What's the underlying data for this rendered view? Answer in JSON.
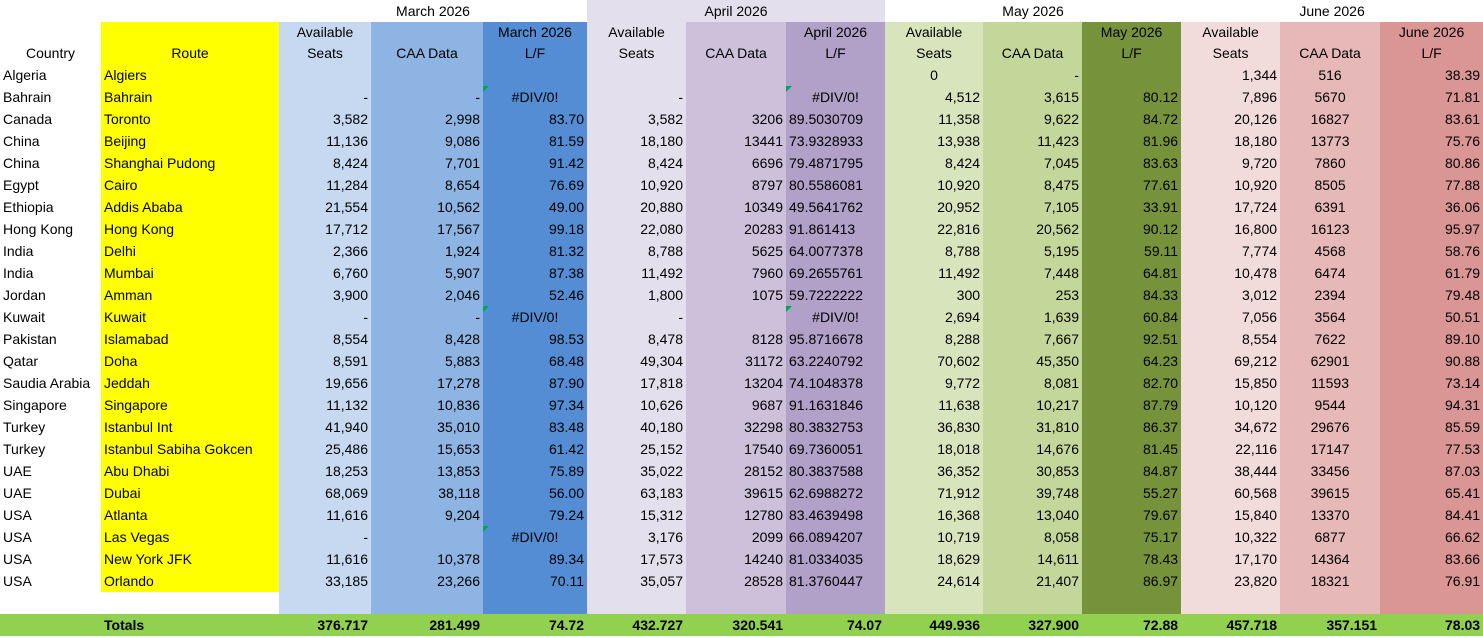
{
  "months": [
    "March 2026",
    "April 2026",
    "May 2026",
    "June 2026"
  ],
  "headers": {
    "country": "Country",
    "route": "Route",
    "seats_l1": "Available",
    "seats_l2": "Seats",
    "caa": "CAA Data",
    "lf_l1": [
      "March 2026",
      "April  2026",
      "May 2026",
      "June 2026"
    ],
    "lf_l2": "L/F"
  },
  "rows": [
    {
      "country": "Algeria",
      "route": "Algiers",
      "mar": [
        "",
        "",
        ""
      ],
      "apr": [
        "",
        "",
        ""
      ],
      "may": [
        "0",
        "-",
        ""
      ],
      "jun": [
        "1,344",
        "516",
        "38.39"
      ]
    },
    {
      "country": "Bahrain",
      "route": "Bahrain",
      "mar": [
        "-",
        "-",
        "#DIV/0!"
      ],
      "apr": [
        "-",
        "",
        "#DIV/0!"
      ],
      "may": [
        "4,512",
        "3,615",
        "80.12"
      ],
      "jun": [
        "7,896",
        "5670",
        "71.81"
      ]
    },
    {
      "country": "Canada",
      "route": "Toronto",
      "mar": [
        "3,582",
        "2,998",
        "83.70"
      ],
      "apr": [
        "3,582",
        "3206",
        "89.5030709"
      ],
      "may": [
        "11,358",
        "9,622",
        "84.72"
      ],
      "jun": [
        "20,126",
        "16827",
        "83.61"
      ]
    },
    {
      "country": "China",
      "route": "Beijing",
      "mar": [
        "11,136",
        "9,086",
        "81.59"
      ],
      "apr": [
        "18,180",
        "13441",
        "73.9328933"
      ],
      "may": [
        "13,938",
        "11,423",
        "81.96"
      ],
      "jun": [
        "18,180",
        "13773",
        "75.76"
      ]
    },
    {
      "country": "China",
      "route": "Shanghai Pudong",
      "mar": [
        "8,424",
        "7,701",
        "91.42"
      ],
      "apr": [
        "8,424",
        "6696",
        "79.4871795"
      ],
      "may": [
        "8,424",
        "7,045",
        "83.63"
      ],
      "jun": [
        "9,720",
        "7860",
        "80.86"
      ]
    },
    {
      "country": "Egypt",
      "route": "Cairo",
      "mar": [
        "11,284",
        "8,654",
        "76.69"
      ],
      "apr": [
        "10,920",
        "8797",
        "80.5586081"
      ],
      "may": [
        "10,920",
        "8,475",
        "77.61"
      ],
      "jun": [
        "10,920",
        "8505",
        "77.88"
      ]
    },
    {
      "country": "Ethiopia",
      "route": "Addis Ababa",
      "mar": [
        "21,554",
        "10,562",
        "49.00"
      ],
      "apr": [
        "20,880",
        "10349",
        "49.5641762"
      ],
      "may": [
        "20,952",
        "7,105",
        "33.91"
      ],
      "jun": [
        "17,724",
        "6391",
        "36.06"
      ]
    },
    {
      "country": "Hong Kong",
      "route": "Hong Kong",
      "mar": [
        "17,712",
        "17,567",
        "99.18"
      ],
      "apr": [
        "22,080",
        "20283",
        "91.861413"
      ],
      "may": [
        "22,816",
        "20,562",
        "90.12"
      ],
      "jun": [
        "16,800",
        "16123",
        "95.97"
      ]
    },
    {
      "country": "India",
      "route": "Delhi",
      "mar": [
        "2,366",
        "1,924",
        "81.32"
      ],
      "apr": [
        "8,788",
        "5625",
        "64.0077378"
      ],
      "may": [
        "8,788",
        "5,195",
        "59.11"
      ],
      "jun": [
        "7,774",
        "4568",
        "58.76"
      ]
    },
    {
      "country": "India",
      "route": "Mumbai",
      "mar": [
        "6,760",
        "5,907",
        "87.38"
      ],
      "apr": [
        "11,492",
        "7960",
        "69.2655761"
      ],
      "may": [
        "11,492",
        "7,448",
        "64.81"
      ],
      "jun": [
        "10,478",
        "6474",
        "61.79"
      ]
    },
    {
      "country": "Jordan",
      "route": "Amman",
      "mar": [
        "3,900",
        "2,046",
        "52.46"
      ],
      "apr": [
        "1,800",
        "1075",
        "59.7222222"
      ],
      "may": [
        "300",
        "253",
        "84.33"
      ],
      "jun": [
        "3,012",
        "2394",
        "79.48"
      ]
    },
    {
      "country": "Kuwait",
      "route": "Kuwait",
      "mar": [
        "-",
        "-",
        "#DIV/0!"
      ],
      "apr": [
        "-",
        "",
        "#DIV/0!"
      ],
      "may": [
        "2,694",
        "1,639",
        "60.84"
      ],
      "jun": [
        "7,056",
        "3564",
        "50.51"
      ]
    },
    {
      "country": "Pakistan",
      "route": "Islamabad",
      "mar": [
        "8,554",
        "8,428",
        "98.53"
      ],
      "apr": [
        "8,478",
        "8128",
        "95.8716678"
      ],
      "may": [
        "8,288",
        "7,667",
        "92.51"
      ],
      "jun": [
        "8,554",
        "7622",
        "89.10"
      ]
    },
    {
      "country": "Qatar",
      "route": "Doha",
      "mar": [
        "8,591",
        "5,883",
        "68.48"
      ],
      "apr": [
        "49,304",
        "31172",
        "63.2240792"
      ],
      "may": [
        "70,602",
        "45,350",
        "64.23"
      ],
      "jun": [
        "69,212",
        "62901",
        "90.88"
      ]
    },
    {
      "country": "Saudia Arabia",
      "route": "Jeddah",
      "mar": [
        "19,656",
        "17,278",
        "87.90"
      ],
      "apr": [
        "17,818",
        "13204",
        "74.1048378"
      ],
      "may": [
        "9,772",
        "8,081",
        "82.70"
      ],
      "jun": [
        "15,850",
        "11593",
        "73.14"
      ]
    },
    {
      "country": "Singapore",
      "route": "Singapore",
      "mar": [
        "11,132",
        "10,836",
        "97.34"
      ],
      "apr": [
        "10,626",
        "9687",
        "91.1631846"
      ],
      "may": [
        "11,638",
        "10,217",
        "87.79"
      ],
      "jun": [
        "10,120",
        "9544",
        "94.31"
      ]
    },
    {
      "country": "Turkey",
      "route": "Istanbul Int",
      "mar": [
        "41,940",
        "35,010",
        "83.48"
      ],
      "apr": [
        "40,180",
        "32298",
        "80.3832753"
      ],
      "may": [
        "36,830",
        "31,810",
        "86.37"
      ],
      "jun": [
        "34,672",
        "29676",
        "85.59"
      ]
    },
    {
      "country": "Turkey",
      "route": "Istanbul Sabiha Gokcen",
      "mar": [
        "25,486",
        "15,653",
        "61.42"
      ],
      "apr": [
        "25,152",
        "17540",
        "69.7360051"
      ],
      "may": [
        "18,018",
        "14,676",
        "81.45"
      ],
      "jun": [
        "22,116",
        "17147",
        "77.53"
      ]
    },
    {
      "country": "UAE",
      "route": "Abu Dhabi",
      "mar": [
        "18,253",
        "13,853",
        "75.89"
      ],
      "apr": [
        "35,022",
        "28152",
        "80.3837588"
      ],
      "may": [
        "36,352",
        "30,853",
        "84.87"
      ],
      "jun": [
        "38,444",
        "33456",
        "87.03"
      ]
    },
    {
      "country": "UAE",
      "route": "Dubai",
      "mar": [
        "68,069",
        "38,118",
        "56.00"
      ],
      "apr": [
        "63,183",
        "39615",
        "62.6988272"
      ],
      "may": [
        "71,912",
        "39,748",
        "55.27"
      ],
      "jun": [
        "60,568",
        "39615",
        "65.41"
      ]
    },
    {
      "country": "USA",
      "route": "Atlanta",
      "mar": [
        "11,616",
        "9,204",
        "79.24"
      ],
      "apr": [
        "15,312",
        "12780",
        "83.4639498"
      ],
      "may": [
        "16,368",
        "13,040",
        "79.67"
      ],
      "jun": [
        "15,840",
        "13370",
        "84.41"
      ]
    },
    {
      "country": "USA",
      "route": "Las Vegas",
      "mar": [
        "-",
        "",
        "#DIV/0!"
      ],
      "apr": [
        "3,176",
        "2099",
        "66.0894207"
      ],
      "may": [
        "10,719",
        "8,058",
        "75.17"
      ],
      "jun": [
        "10,322",
        "6877",
        "66.62"
      ]
    },
    {
      "country": "USA",
      "route": "New York JFK",
      "mar": [
        "11,616",
        "10,378",
        "89.34"
      ],
      "apr": [
        "17,573",
        "14240",
        "81.0334035"
      ],
      "may": [
        "18,629",
        "14,611",
        "78.43"
      ],
      "jun": [
        "17,170",
        "14364",
        "83.66"
      ]
    },
    {
      "country": "USA",
      "route": "Orlando",
      "mar": [
        "33,185",
        "23,266",
        "70.11"
      ],
      "apr": [
        "35,057",
        "28528",
        "81.3760447"
      ],
      "may": [
        "24,614",
        "21,407",
        "86.97"
      ],
      "jun": [
        "23,820",
        "18321",
        "76.91"
      ]
    }
  ],
  "totals": {
    "label": "Totals",
    "mar": [
      "376.717",
      "281.499",
      "74.72"
    ],
    "apr": [
      "432.727",
      "320.541",
      "74.07"
    ],
    "may": [
      "449.936",
      "327.900",
      "72.88"
    ],
    "jun": [
      "457.718",
      "357.151",
      "78.03"
    ]
  },
  "colors": {
    "route_fill": "#ffff00",
    "totals_fill": "#92d050",
    "march": [
      "#c6d9f0",
      "#8db4e2",
      "#548dd4"
    ],
    "april": [
      "#e4dfec",
      "#ccc0da",
      "#b1a0c7"
    ],
    "may": [
      "#d8e4bc",
      "#c4d79b",
      "#76933c"
    ],
    "june": [
      "#f2dcdb",
      "#e6b9b8",
      "#da9694"
    ]
  }
}
